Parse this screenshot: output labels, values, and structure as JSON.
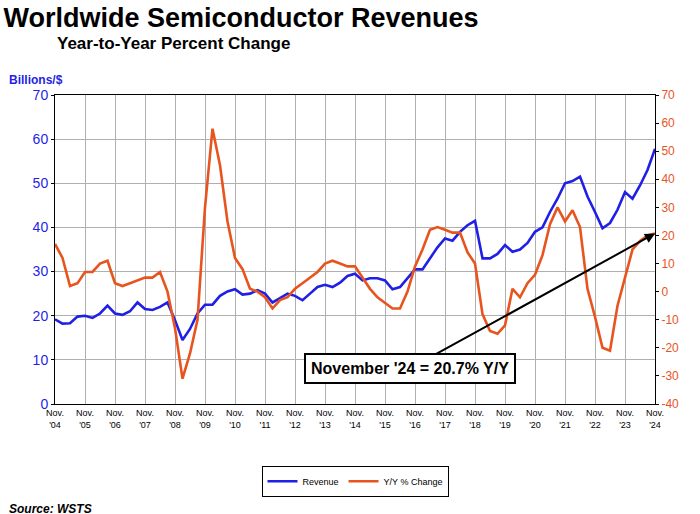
{
  "chart_data": {
    "type": "line",
    "title": "Worldwide Semiconductor Revenues",
    "subtitle": "Year-to-Year Percent Change",
    "y_label": "Billions/$",
    "source": "Source: WSTS",
    "categories": [
      "Nov.\n'04",
      null,
      null,
      null,
      "Nov.\n'05",
      null,
      null,
      null,
      "Nov.\n'06",
      null,
      null,
      null,
      "Nov.\n'07",
      null,
      null,
      null,
      "Nov.\n'08",
      null,
      null,
      null,
      "Nov.\n'09",
      null,
      null,
      null,
      "Nov.\n'10",
      null,
      null,
      null,
      "Nov.\n'11",
      null,
      null,
      null,
      "Nov.\n'12",
      null,
      null,
      null,
      "Nov.\n'13",
      null,
      null,
      null,
      "Nov.\n'14",
      null,
      null,
      null,
      "Nov.\n'15",
      null,
      null,
      null,
      "Nov.\n'16",
      null,
      null,
      null,
      "Nov.\n'17",
      null,
      null,
      null,
      "Nov.\n'18",
      null,
      null,
      null,
      "Nov.\n'19",
      null,
      null,
      null,
      "Nov.\n'20",
      null,
      null,
      null,
      "Nov.\n'21",
      null,
      null,
      null,
      "Nov.\n'22",
      null,
      null,
      null,
      "Nov.\n'23",
      null,
      null,
      null,
      "Nov.\n'24"
    ],
    "series": [
      {
        "name": "Revenue",
        "color": "#1f1fe6",
        "axis": "y",
        "values": [
          19.2,
          18.2,
          18.3,
          19.8,
          20.0,
          19.5,
          20.5,
          22.3,
          20.5,
          20.2,
          21.0,
          23.0,
          21.5,
          21.3,
          22.0,
          23.0,
          19.0,
          14.5,
          17.0,
          20.5,
          22.5,
          22.5,
          24.5,
          25.5,
          26.0,
          24.8,
          25.0,
          25.8,
          25.0,
          23.0,
          24.0,
          25.0,
          24.5,
          23.5,
          25.0,
          26.5,
          27.0,
          26.5,
          27.5,
          29.0,
          29.5,
          28.0,
          28.5,
          28.5,
          28.0,
          26.0,
          26.5,
          28.5,
          30.5,
          30.5,
          33.0,
          35.5,
          37.5,
          37.0,
          39.0,
          40.5,
          41.5,
          33.0,
          33.0,
          34.0,
          36.0,
          34.5,
          35.0,
          36.5,
          39.0,
          40.0,
          43.5,
          46.5,
          50.0,
          50.5,
          51.5,
          47.0,
          43.5,
          39.8,
          41.0,
          44.0,
          48.0,
          46.5,
          49.5,
          53.0,
          57.8
        ]
      },
      {
        "name": "Y/Y % Change",
        "color": "#e8541e",
        "axis": "y2",
        "values": [
          17,
          12,
          2,
          3,
          7,
          7,
          10,
          11,
          3,
          2,
          3,
          4,
          5,
          5,
          7,
          0,
          -13,
          -31,
          -22,
          -10,
          30,
          58,
          45,
          25,
          12,
          8,
          1,
          0,
          -2,
          -6,
          -3,
          -2,
          1,
          3,
          5,
          7,
          10,
          11,
          10,
          9,
          9,
          5,
          1,
          -2,
          -4,
          -6,
          -6,
          0,
          9,
          15,
          22,
          23,
          22,
          21,
          21,
          14,
          10,
          -8,
          -14,
          -15,
          -12,
          1,
          -2,
          3,
          6,
          13,
          24,
          30,
          25,
          29,
          23,
          1,
          -9,
          -20,
          -21,
          -5,
          5,
          15,
          18,
          20,
          20.7
        ]
      }
    ],
    "ylim": [
      0,
      70
    ],
    "yticks": [
      0,
      10,
      20,
      30,
      40,
      50,
      60,
      70
    ],
    "y2lim": [
      -40,
      70
    ],
    "y2ticks": [
      -40,
      -30,
      -20,
      -10,
      0,
      10,
      20,
      30,
      40,
      50,
      60,
      70
    ],
    "grid": true,
    "legend": "bottom",
    "annotations": [
      {
        "text": "November '24 = 20.7% Y/Y"
      }
    ]
  }
}
